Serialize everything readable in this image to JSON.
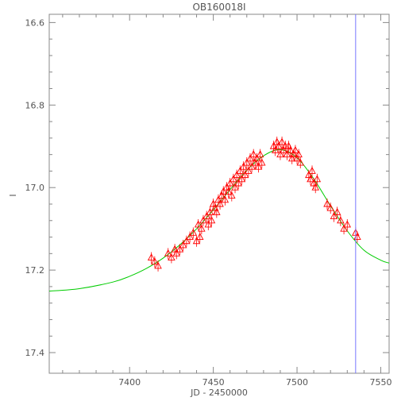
{
  "chart_data": {
    "type": "scatter",
    "title": "OB160018I",
    "xlabel": "JD - 2450000",
    "ylabel": "I",
    "xlim": [
      7352,
      7555
    ],
    "ylim": [
      17.45,
      16.58
    ],
    "y_inverted": true,
    "grid": false,
    "x_ticks": [
      7400,
      7450,
      7500,
      7550
    ],
    "x_tick_labels": [
      "7400",
      "7450",
      "7500",
      "7550"
    ],
    "y_ticks": [
      16.6,
      16.8,
      17.0,
      17.2,
      17.4
    ],
    "y_tick_labels": [
      "16.6",
      "16.8",
      "17.0",
      "17.2",
      "17.4"
    ],
    "marker_vertical_line": {
      "x": 7535,
      "color": "#7777ff"
    },
    "model_curve": {
      "color": "#00cc00",
      "x": [
        7352,
        7370,
        7390,
        7400,
        7410,
        7420,
        7430,
        7440,
        7450,
        7460,
        7470,
        7480,
        7490,
        7500,
        7510,
        7520,
        7530,
        7540,
        7550,
        7555
      ],
      "y": [
        17.251,
        17.245,
        17.229,
        17.215,
        17.196,
        17.171,
        17.139,
        17.1,
        17.054,
        17.005,
        16.958,
        16.923,
        16.908,
        16.928,
        16.979,
        17.044,
        17.105,
        17.152,
        17.176,
        17.183
      ]
    },
    "series": [
      {
        "marker": "triangle",
        "color": "#ff0000",
        "x": [
          7413,
          7415,
          7417,
          7423,
          7425,
          7427,
          7428,
          7430,
          7432,
          7434,
          7436,
          7438,
          7440,
          7441,
          7442,
          7443,
          7444,
          7446,
          7447,
          7448,
          7449,
          7450,
          7451,
          7452,
          7453,
          7454,
          7455,
          7456,
          7457,
          7458,
          7459,
          7460,
          7461,
          7462,
          7463,
          7464,
          7465,
          7466,
          7467,
          7468,
          7469,
          7470,
          7471,
          7472,
          7473,
          7474,
          7475,
          7476,
          7477,
          7478,
          7479,
          7486,
          7487,
          7488,
          7489,
          7490,
          7491,
          7492,
          7493,
          7494,
          7495,
          7496,
          7497,
          7498,
          7499,
          7500,
          7501,
          7502,
          7507,
          7508,
          7509,
          7510,
          7511,
          7512,
          7518,
          7520,
          7522,
          7524,
          7526,
          7528,
          7530,
          7535,
          7536
        ],
        "y": [
          17.17,
          17.18,
          17.19,
          17.16,
          17.17,
          17.15,
          17.16,
          17.15,
          17.14,
          17.13,
          17.12,
          17.11,
          17.13,
          17.09,
          17.12,
          17.1,
          17.08,
          17.07,
          17.09,
          17.06,
          17.08,
          17.04,
          17.05,
          17.06,
          17.03,
          17.04,
          17.02,
          17.01,
          17.03,
          17.0,
          17.01,
          16.99,
          17.02,
          16.98,
          17.0,
          16.97,
          16.99,
          16.96,
          16.98,
          16.95,
          16.97,
          16.94,
          16.96,
          16.93,
          16.95,
          16.92,
          16.94,
          16.93,
          16.95,
          16.92,
          16.94,
          16.9,
          16.91,
          16.89,
          16.9,
          16.92,
          16.89,
          16.91,
          16.9,
          16.92,
          16.9,
          16.91,
          16.93,
          16.92,
          16.91,
          16.93,
          16.92,
          16.94,
          16.97,
          16.98,
          16.96,
          16.99,
          17.0,
          16.98,
          17.04,
          17.05,
          17.07,
          17.06,
          17.08,
          17.1,
          17.09,
          17.11,
          17.12
        ]
      }
    ]
  }
}
